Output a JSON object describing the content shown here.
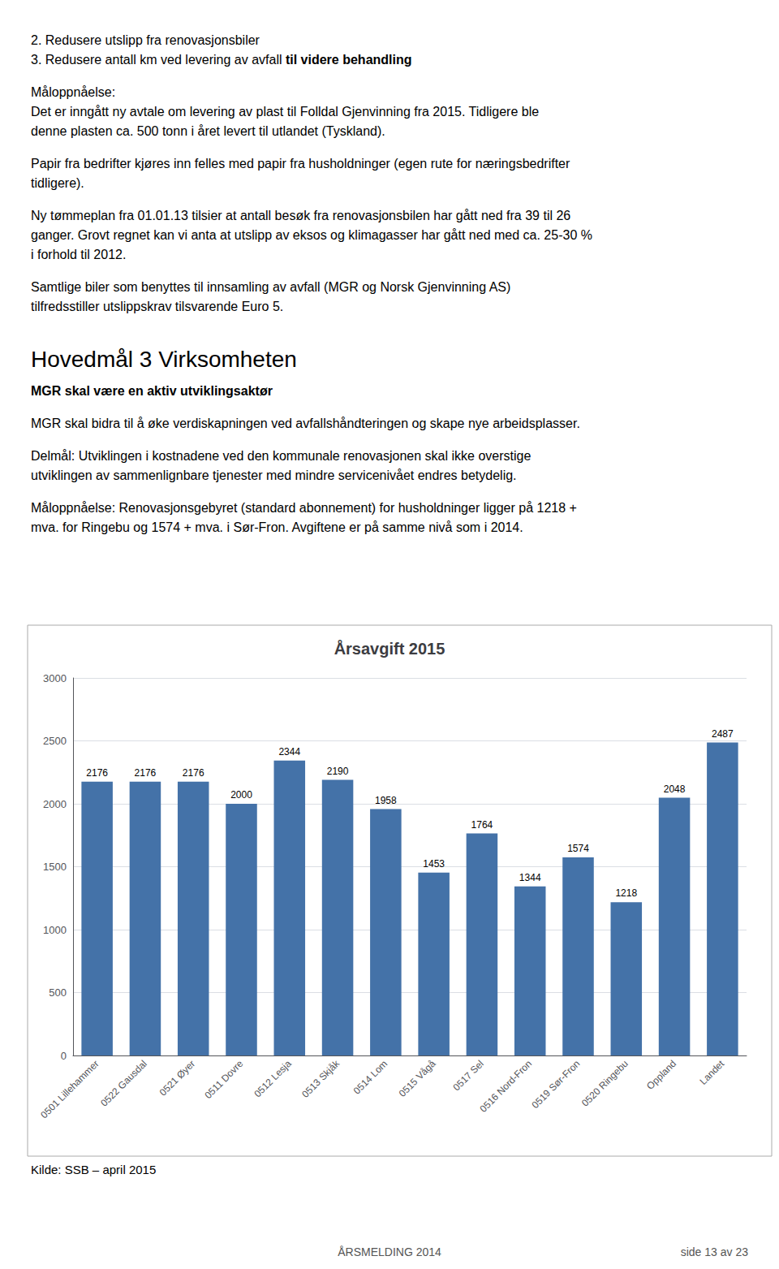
{
  "chart_data": {
    "type": "bar",
    "title": "Årsavgift 2015",
    "categories": [
      "0501 Lillehammer",
      "0522 Gausdal",
      "0521 Øyer",
      "0511 Dovre",
      "0512 Lesja",
      "0513 Skjåk",
      "0514 Lom",
      "0515 Vågå",
      "0517 Sel",
      "0516 Nord-Fron",
      "0519 Sør-Fron",
      "0520 Ringebu",
      "Oppland",
      "Landet"
    ],
    "values": [
      2176,
      2176,
      2176,
      2000,
      2344,
      2190,
      1958,
      1453,
      1764,
      1344,
      1574,
      1218,
      2048,
      2487
    ],
    "color": "#4472a8",
    "ylim": [
      0,
      3000
    ],
    "yticks": [
      0,
      500,
      1000,
      1500,
      2000,
      2500,
      3000
    ],
    "grid": true,
    "data_labels": true,
    "annotations": [
      "2. Redusere utslipp fra renovasjonsbiler",
      "3. Redusere antall km ved levering av avfall ",
      "til videre behandling",
      "Måloppnåelse:",
      "Det er inngått ny avtale om levering av plast til Folldal Gjenvinning fra 2015. Tidligere ble",
      "denne plasten ca. 500 tonn i året levert til utlandet (Tyskland).",
      "Papir fra bedrifter kjøres inn felles med papir fra husholdninger (egen rute for næringsbedrifter",
      "tidligere).",
      "Ny tømmeplan fra 01.01.13 tilsier at antall besøk fra renovasjonsbilen har gått ned fra 39 til 26",
      "ganger. Grovt regnet kan vi anta at utslipp av eksos og klimagasser har gått ned med ca. 25-30 %",
      "i forhold til 2012.",
      "Samtlige biler som benyttes til innsamling av avfall (MGR og Norsk Gjenvinning AS)",
      "tilfredsstiller utslippskrav tilsvarende Euro 5.",
      "Hovedmål 3 Virksomheten",
      "MGR skal være en aktiv utviklingsaktør",
      "MGR skal bidra til å øke verdiskapningen ved avfallshåndteringen og skape nye arbeidsplasser.",
      "Delmål: Utviklingen i kostnadene ved den kommunale renovasjonen skal ikke overstige",
      "utviklingen av sammenlignbare tjenester med mindre servicenivået endres betydelig.",
      "Måloppnåelse: Renovasjonsgebyret (standard abonnement) for husholdninger ligger på 1218 +",
      "mva. for Ringebu og 1574 + mva. i Sør-Fron. Avgiftene er på samme nivå som i 2014.",
      "Kilde: SSB – april 2015",
      "ÅRSMELDING 2014",
      "side 13 av 23"
    ]
  }
}
